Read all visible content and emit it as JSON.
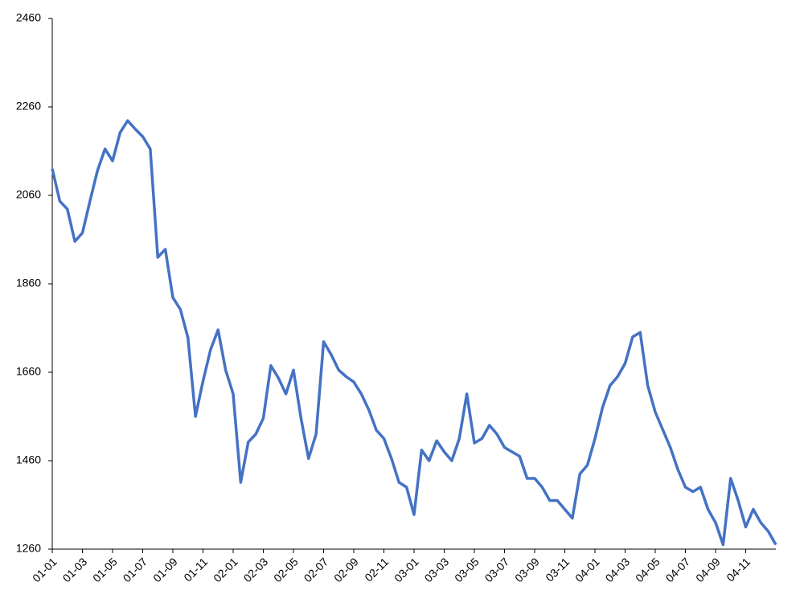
{
  "chart_data": {
    "type": "line",
    "categories": [
      "01-01",
      null,
      null,
      null,
      "01-03",
      null,
      null,
      null,
      "01-05",
      null,
      null,
      null,
      "01-07",
      null,
      null,
      null,
      "01-09",
      null,
      null,
      null,
      "01-11",
      null,
      null,
      null,
      "02-01",
      null,
      null,
      null,
      "02-03",
      null,
      null,
      null,
      "02-05",
      null,
      null,
      null,
      "02-07",
      null,
      null,
      null,
      "02-09",
      null,
      null,
      null,
      "02-11",
      null,
      null,
      null,
      "03-01",
      null,
      null,
      null,
      "03-03",
      null,
      null,
      null,
      "03-05",
      null,
      null,
      null,
      "03-07",
      null,
      null,
      null,
      "03-09",
      null,
      null,
      null,
      "03-11",
      null,
      null,
      null,
      "04-01",
      null,
      null,
      null,
      "04-03",
      null,
      null,
      null,
      "04-05",
      null,
      null,
      null,
      "04-07",
      null,
      null,
      null,
      "04-09",
      null,
      null,
      null,
      "04-11",
      null,
      null,
      null,
      null
    ],
    "values": [
      2120,
      2047,
      2029,
      1956,
      1975,
      2047,
      2116,
      2165,
      2138,
      2202,
      2229,
      2210,
      2193,
      2165,
      1920,
      1938,
      1829,
      1802,
      1738,
      1560,
      1640,
      1711,
      1756,
      1665,
      1611,
      1411,
      1502,
      1520,
      1556,
      1675,
      1647,
      1611,
      1665,
      1556,
      1465,
      1520,
      1729,
      1700,
      1665,
      1650,
      1638,
      1611,
      1575,
      1529,
      1510,
      1465,
      1411,
      1400,
      1338,
      1484,
      1460,
      1505,
      1480,
      1460,
      1510,
      1611,
      1500,
      1510,
      1540,
      1520,
      1490,
      1480,
      1470,
      1420,
      1420,
      1400,
      1370,
      1370,
      1350,
      1330,
      1430,
      1450,
      1510,
      1580,
      1630,
      1650,
      1680,
      1740,
      1750,
      1630,
      1570,
      1530,
      1490,
      1440,
      1400,
      1390,
      1400,
      1350,
      1320,
      1270,
      1420,
      1370,
      1310,
      1350,
      1320,
      1300,
      1270
    ],
    "color": "#4472c4",
    "ylim": [
      1260,
      2460
    ],
    "yticks": [
      1260,
      1460,
      1660,
      1860,
      2060,
      2260,
      2460
    ]
  }
}
